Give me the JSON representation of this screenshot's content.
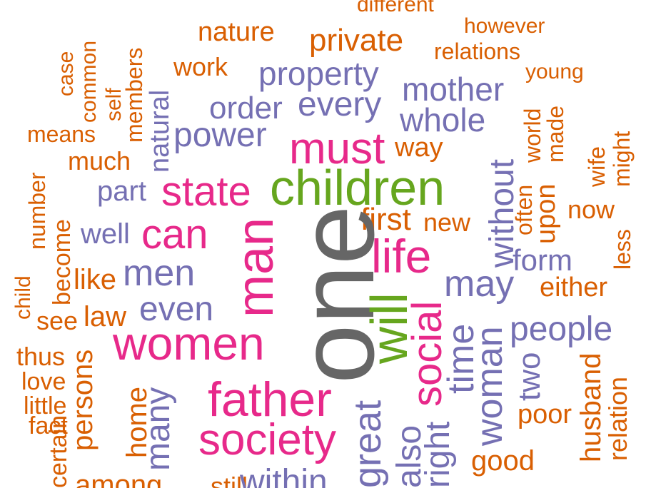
{
  "colors": {
    "gray": "#666666",
    "green": "#66a61e",
    "pink": "#e7298a",
    "purple": "#7570b3",
    "orange": "#d95f02"
  },
  "words": {
    "different": "different",
    "however": "however",
    "nature": "nature",
    "private": "private",
    "relations": "relations",
    "work": "work",
    "young": "young",
    "property": "property",
    "mother": "mother",
    "case": "case",
    "common": "common",
    "self": "self",
    "members": "members",
    "natural": "natural",
    "order": "order",
    "every": "every",
    "whole": "whole",
    "world": "world",
    "made": "made",
    "means": "means",
    "power": "power",
    "must": "must",
    "way": "way",
    "wife": "wife",
    "might": "might",
    "much": "much",
    "number": "number",
    "without": "without",
    "children": "children",
    "part": "part",
    "state": "state",
    "often": "often",
    "upon": "upon",
    "now": "now",
    "become": "become",
    "first": "first",
    "new": "new",
    "well": "well",
    "can": "can",
    "man": "man",
    "one": "one",
    "life": "life",
    "less": "less",
    "child": "child",
    "form": "form",
    "like": "like",
    "men": "men",
    "may": "may",
    "either": "either",
    "law": "law",
    "see": "see",
    "even": "even",
    "will": "will",
    "social": "social",
    "people": "people",
    "time": "time",
    "thus": "thus",
    "women": "women",
    "persons": "persons",
    "love": "love",
    "woman": "woman",
    "two": "two",
    "husband": "husband",
    "relation": "relation",
    "little": "little",
    "father": "father",
    "home": "home",
    "many": "many",
    "poor": "poor",
    "fact": "fact",
    "society": "society",
    "great": "great",
    "also": "also",
    "right": "right",
    "good": "good",
    "certain": "certain",
    "among": "among",
    "within": "within",
    "still": "still"
  }
}
